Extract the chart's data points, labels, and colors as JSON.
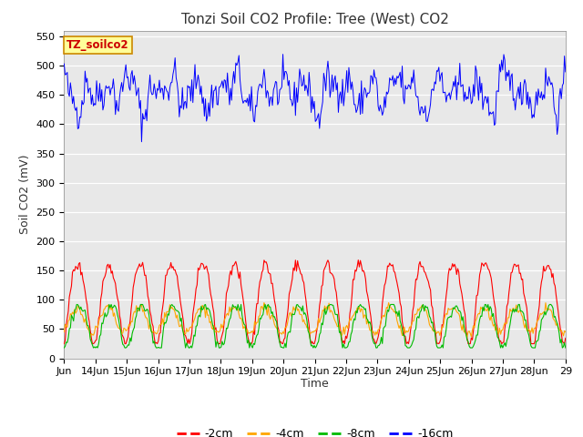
{
  "title": "Tonzi Soil CO2 Profile: Tree (West) CO2",
  "ylabel": "Soil CO2 (mV)",
  "xlabel": "Time",
  "legend_label": "TZ_soilco2",
  "ylim": [
    0,
    560
  ],
  "yticks": [
    0,
    50,
    100,
    150,
    200,
    250,
    300,
    350,
    400,
    450,
    500,
    550
  ],
  "xlim_start": 13,
  "xlim_end": 29,
  "xtick_positions": [
    13,
    14,
    15,
    16,
    17,
    18,
    19,
    20,
    21,
    22,
    23,
    24,
    25,
    26,
    27,
    28,
    29
  ],
  "xtick_labels": [
    "Jun",
    "14Jun",
    "15Jun",
    "16Jun",
    "17Jun",
    "18Jun",
    "19Jun",
    "20Jun",
    "21Jun",
    "22Jun",
    "23Jun",
    "24Jun",
    "25Jun",
    "26Jun",
    "27Jun",
    "28Jun",
    "29"
  ],
  "series_colors": {
    "2cm": "#ff0000",
    "4cm": "#ffa500",
    "8cm": "#00bb00",
    "16cm": "#0000ff"
  },
  "background_color": "#e8e8e8",
  "legend_box_facecolor": "#ffff99",
  "legend_box_edgecolor": "#cc8800",
  "title_fontsize": 11,
  "axis_label_fontsize": 9,
  "tick_fontsize": 8,
  "legend_fontsize": 9,
  "seed": 42,
  "n_points": 480,
  "figsize": [
    6.4,
    4.8
  ],
  "dpi": 100
}
